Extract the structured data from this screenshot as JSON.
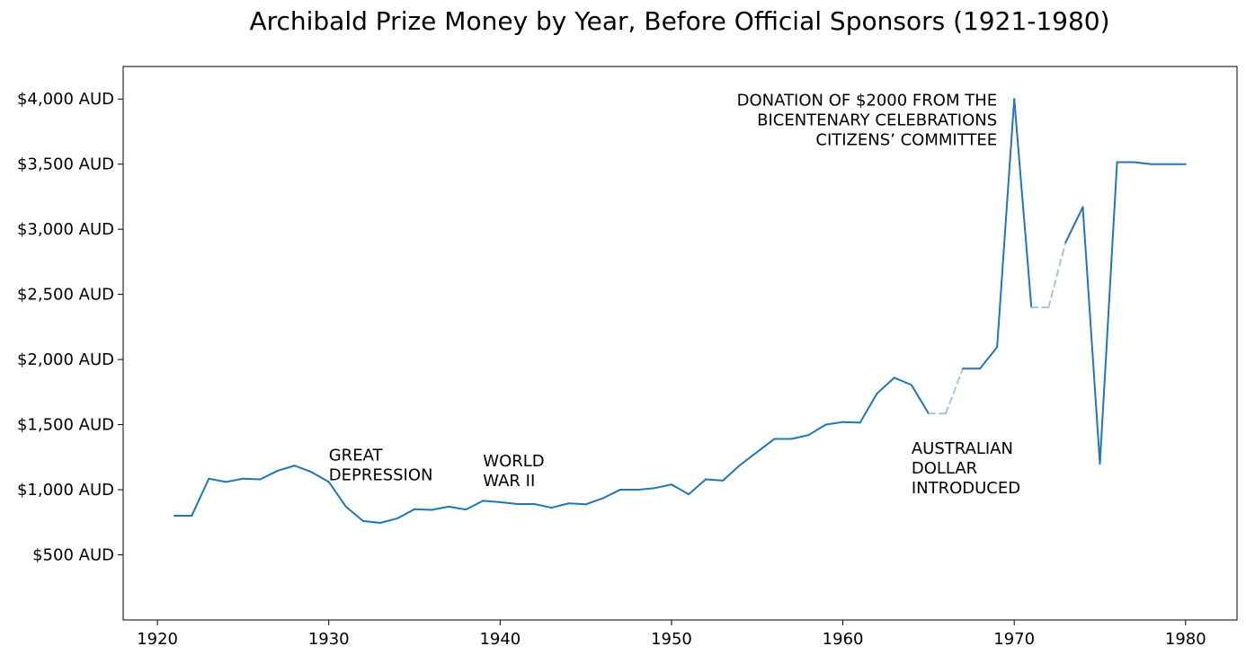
{
  "chart_data": {
    "type": "line",
    "title": "Archibald Prize Money by Year, Before Official Sponsors (1921-1980)",
    "xlabel": "",
    "ylabel": "",
    "xlim": [
      1918,
      1983
    ],
    "ylim": [
      0,
      4250
    ],
    "x_ticks": [
      1920,
      1930,
      1940,
      1950,
      1960,
      1970,
      1980
    ],
    "x_tick_labels": [
      "1920",
      "1930",
      "1940",
      "1950",
      "1960",
      "1970",
      "1980"
    ],
    "y_ticks": [
      500,
      1000,
      1500,
      2000,
      2500,
      3000,
      3500,
      4000
    ],
    "y_tick_labels": [
      "$500 AUD",
      "$1,000 AUD",
      "$1,500 AUD",
      "$2,000 AUD",
      "$2,500 AUD",
      "$3,000 AUD",
      "$3,500 AUD",
      "$4,000 AUD"
    ],
    "grid": false,
    "line_color": "#1f77b4",
    "gap_color": "#a8c5de",
    "series": [
      {
        "x": [
          1921,
          1922,
          1923,
          1924,
          1925,
          1926,
          1927,
          1928,
          1929,
          1930,
          1931,
          1932,
          1933,
          1934,
          1935,
          1936,
          1937,
          1938,
          1939,
          1940,
          1941,
          1942,
          1943,
          1944,
          1945,
          1946,
          1947,
          1948,
          1949,
          1950,
          1951,
          1952,
          1953,
          1954,
          1955,
          1956,
          1957,
          1958,
          1959,
          1960,
          1961,
          1962,
          1963,
          1964,
          1965,
          1966,
          1967,
          1968,
          1969,
          1970,
          1971,
          1972,
          1973,
          1974,
          1975,
          1976,
          1977,
          1978,
          1979,
          1980
        ],
        "values": [
          800,
          800,
          1085,
          1060,
          1085,
          1080,
          1145,
          1185,
          1135,
          1060,
          870,
          760,
          745,
          780,
          850,
          845,
          870,
          848,
          915,
          905,
          890,
          890,
          862,
          895,
          888,
          935,
          1000,
          1000,
          1012,
          1040,
          965,
          1080,
          1070,
          1190,
          1290,
          1390,
          1390,
          1420,
          1500,
          1520,
          1515,
          1740,
          1860,
          1805,
          1585,
          1585,
          1930,
          1930,
          2095,
          4000,
          2400,
          2400,
          2900,
          3170,
          1200,
          3515,
          3515,
          3500,
          3500,
          3500
        ],
        "missing_years": [
          1966,
          1972
        ]
      }
    ],
    "annotations": [
      {
        "x": 1930,
        "y": 1225,
        "lines": [
          "GREAT",
          "DEPRESSION"
        ],
        "align": "left"
      },
      {
        "x": 1939,
        "y": 1180,
        "lines": [
          "WORLD",
          "WAR II"
        ],
        "align": "left"
      },
      {
        "x": 1964,
        "y": 1275,
        "lines": [
          "AUSTRALIAN",
          "DOLLAR",
          "INTRODUCED"
        ],
        "align": "left"
      },
      {
        "x": 1969,
        "y": 3950,
        "lines": [
          "DONATION OF $2000 FROM THE",
          "BICENTENARY CELEBRATIONS",
          "CITIZENS’ COMMITTEE"
        ],
        "align": "right"
      }
    ]
  }
}
